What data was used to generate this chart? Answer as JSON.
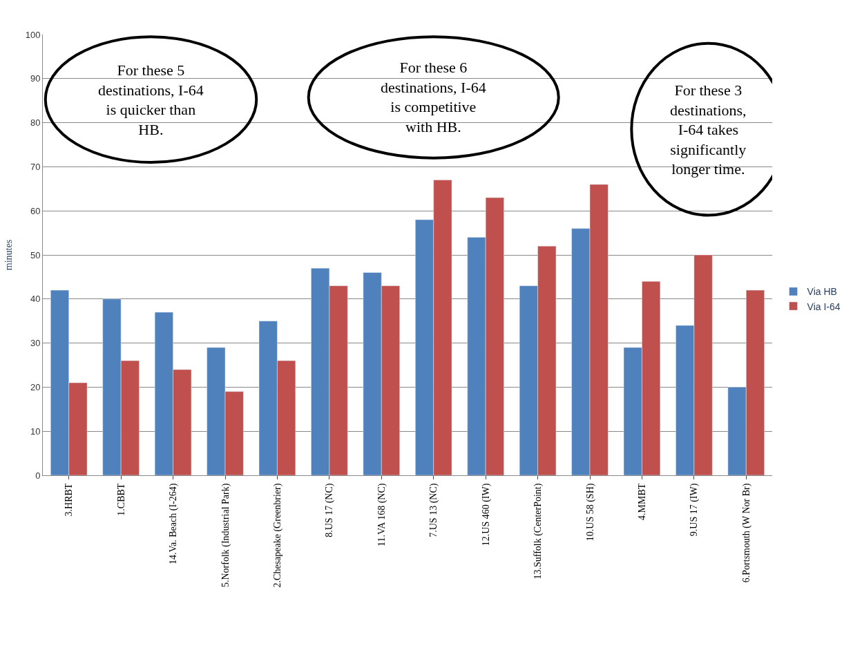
{
  "chart_data": {
    "type": "bar",
    "ylabel": "minutes",
    "categories": [
      "3.HRBT",
      "1.CBBT",
      "14.Va. Beach (I-264)",
      "5.Norfolk (Industrial Park)",
      "2.Chesapeake (Greenbrier)",
      "8.US 17 (NC)",
      "11.VA 168 (NC)",
      "7.US 13 (NC)",
      "12.US 460 (IW)",
      "13.Suffolk (CenterPoint)",
      "10.US 58 (SH)",
      "4.MMBT",
      "9.US 17 (IW)",
      "6.Portsmouth (W Nor Br)"
    ],
    "series": [
      {
        "name": "Via HB",
        "color": "#4f81bd",
        "values": [
          42,
          40,
          37,
          29,
          35,
          47,
          46,
          58,
          54,
          43,
          56,
          29,
          34,
          20
        ]
      },
      {
        "name": "Via I-64",
        "color": "#c0504d",
        "values": [
          21,
          26,
          24,
          19,
          26,
          43,
          43,
          67,
          63,
          52,
          66,
          44,
          50,
          42
        ]
      }
    ],
    "ylim": [
      0,
      100
    ],
    "yticks": [
      0,
      10,
      20,
      30,
      40,
      50,
      60,
      70,
      80,
      90,
      100
    ],
    "grid": "y",
    "legend": "right",
    "annotations": [
      "For these 5 destinations, I-64 is quicker than HB.",
      "For these 6 destinations, I-64 is competitive with HB.",
      "For these 3 destinations, I-64 takes significantly longer time."
    ]
  }
}
